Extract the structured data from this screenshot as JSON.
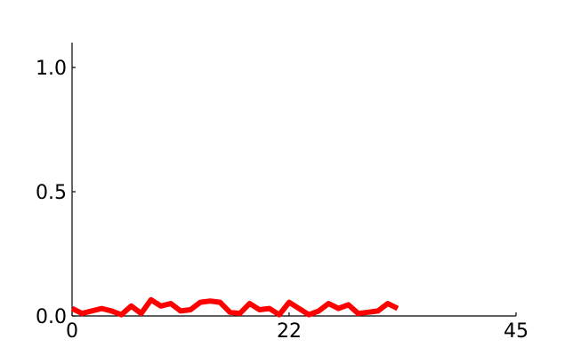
{
  "chart_data": {
    "type": "line",
    "title": "",
    "xlabel": "",
    "ylabel": "",
    "xlim": [
      0,
      45
    ],
    "ylim": [
      0,
      1.1
    ],
    "grid": false,
    "x_ticks": [
      0,
      22,
      45
    ],
    "x_tick_labels": [
      "0",
      "22",
      "45"
    ],
    "y_ticks": [
      0,
      0.5,
      1.0
    ],
    "y_tick_labels": [
      "0.0",
      "0.5",
      "1.0"
    ],
    "series": [
      {
        "color": "#ff0000",
        "x": [
          0,
          1,
          2,
          3,
          4,
          5,
          6,
          7,
          8,
          9,
          10,
          11,
          12,
          13,
          14,
          15,
          16,
          17,
          18,
          19,
          20,
          21,
          22,
          23,
          24,
          25,
          26,
          27,
          28,
          29,
          30,
          31,
          32,
          33
        ],
        "y": [
          0.03,
          0.01,
          0.02,
          0.03,
          0.02,
          0.005,
          0.04,
          0.01,
          0.065,
          0.04,
          0.05,
          0.02,
          0.025,
          0.055,
          0.06,
          0.055,
          0.015,
          0.01,
          0.05,
          0.025,
          0.03,
          0.005,
          0.055,
          0.03,
          0.005,
          0.02,
          0.05,
          0.03,
          0.045,
          0.01,
          0.015,
          0.02,
          0.05,
          0.03
        ]
      }
    ]
  }
}
